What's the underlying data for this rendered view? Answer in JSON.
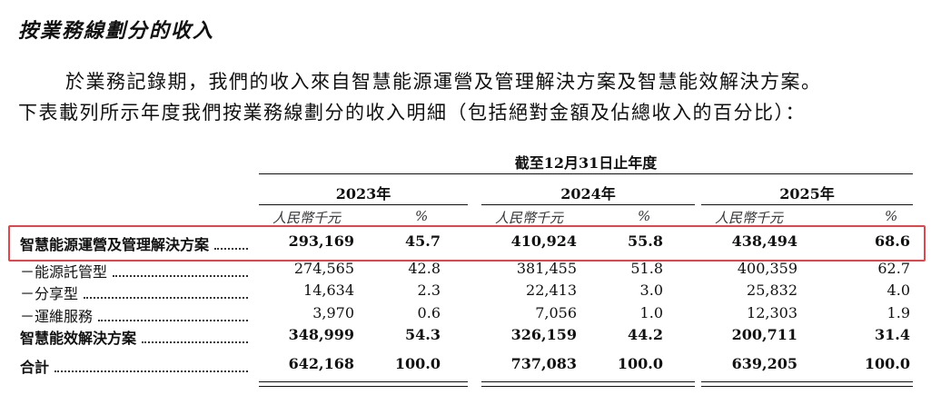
{
  "heading": "按業務線劃分的收入",
  "paragraph": [
    "於業務記錄期，我們的收入來自智慧能源運營及管理解決方案及智慧能效解決方案。",
    "下表載列所示年度我們按業務線劃分的收入明細（包括絕對金額及佔總收入的百分比）："
  ],
  "table": {
    "period": "截至12月31日止年度",
    "years": [
      "2023年",
      "2024年",
      "2025年"
    ],
    "units": [
      "人民幣千元",
      "%"
    ],
    "rows": [
      {
        "label": "智慧能源運營及管理解決方案",
        "bold": true,
        "cells": [
          "293,169",
          "45.7",
          "410,924",
          "55.8",
          "438,494",
          "68.6"
        ]
      },
      {
        "label": "－能源託管型",
        "bold": false,
        "cells": [
          "274,565",
          "42.8",
          "381,455",
          "51.8",
          "400,359",
          "62.7"
        ]
      },
      {
        "label": "－分享型",
        "bold": false,
        "cells": [
          "14,634",
          "2.3",
          "22,413",
          "3.0",
          "25,832",
          "4.0"
        ]
      },
      {
        "label": "－運維服務",
        "bold": false,
        "cells": [
          "3,970",
          "0.6",
          "7,056",
          "1.0",
          "12,303",
          "1.9"
        ]
      },
      {
        "label": "智慧能效解決方案",
        "bold": true,
        "cells": [
          "348,999",
          "54.3",
          "326,159",
          "44.2",
          "200,711",
          "31.4"
        ]
      },
      {
        "label": "合計",
        "bold": true,
        "cells": [
          "642,168",
          "100.0",
          "737,083",
          "100.0",
          "639,205",
          "100.0"
        ]
      }
    ]
  }
}
